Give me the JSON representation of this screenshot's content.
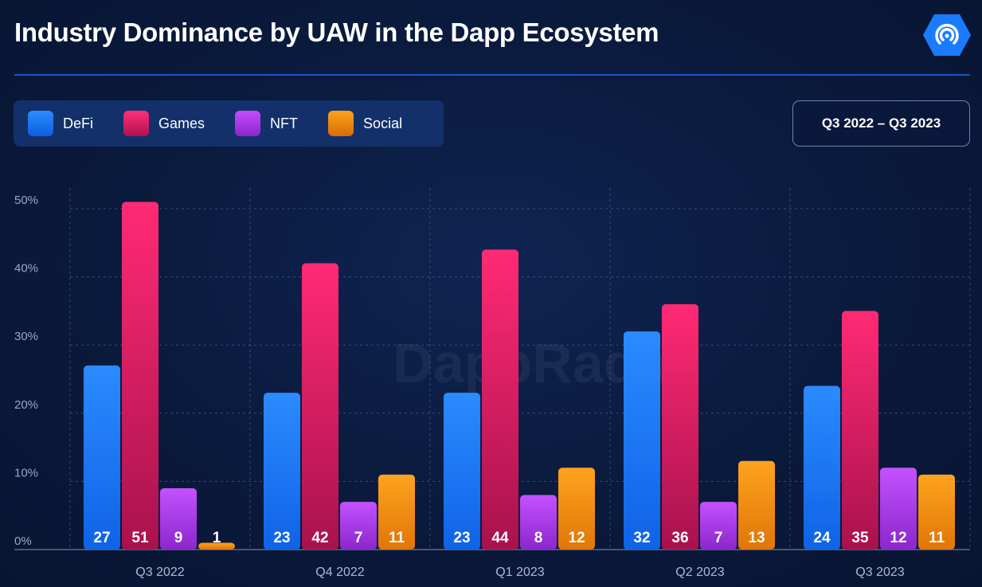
{
  "header": {
    "title": "Industry Dominance by UAW in the Dapp Ecosystem",
    "period": "Q3 2022 – Q3 2023",
    "logo_icon": "dappradar-logo-icon"
  },
  "watermark": "DappRadar",
  "colors": {
    "DeFi": "#1a7bff",
    "Games": "#ff1f6d",
    "NFT": "#b43cf2",
    "Social": "#ff8f0a",
    "accent_line": "#1f54c8"
  },
  "chart_data": {
    "type": "bar",
    "categories": [
      "Q3 2022",
      "Q4 2022",
      "Q1 2023",
      "Q2 2023",
      "Q3 2023"
    ],
    "series": [
      {
        "name": "DeFi",
        "values": [
          27,
          23,
          23,
          32,
          24
        ]
      },
      {
        "name": "Games",
        "values": [
          51,
          42,
          44,
          36,
          35
        ]
      },
      {
        "name": "NFT",
        "values": [
          9,
          7,
          8,
          7,
          12
        ]
      },
      {
        "name": "Social",
        "values": [
          1,
          11,
          12,
          13,
          11
        ]
      }
    ],
    "yticks": [
      "0%",
      "10%",
      "20%",
      "30%",
      "40%",
      "50%"
    ],
    "ylim": [
      0,
      52
    ],
    "grid": true,
    "legend": "top-left"
  }
}
